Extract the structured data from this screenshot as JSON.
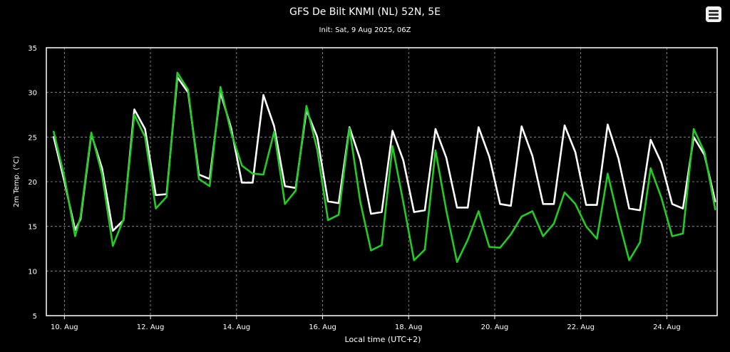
{
  "chart_data": {
    "type": "line",
    "title": "GFS De Bilt KNMI (NL) 52N, 5E",
    "subtitle": "Init: Sat, 9 Aug 2025, 06Z",
    "xlabel": "Local time (UTC+2)",
    "ylabel": "2m Temp. (°C)",
    "ylim": [
      5,
      35
    ],
    "yticks": [
      5,
      10,
      15,
      20,
      25,
      30,
      35
    ],
    "x_range_days": [
      9.58,
      25.17
    ],
    "xticks": [
      {
        "day": 10,
        "label": "10. Aug"
      },
      {
        "day": 12,
        "label": "12. Aug"
      },
      {
        "day": 14,
        "label": "14. Aug"
      },
      {
        "day": 16,
        "label": "16. Aug"
      },
      {
        "day": 18,
        "label": "18. Aug"
      },
      {
        "day": 20,
        "label": "20. Aug"
      },
      {
        "day": 22,
        "label": "22. Aug"
      },
      {
        "day": 24,
        "label": "24. Aug"
      }
    ],
    "grid": true,
    "legend": "none",
    "series": [
      {
        "color": "#ffffff",
        "x": [
          9.75,
          10.0,
          10.25,
          10.375,
          10.625,
          10.875,
          11.125,
          11.375,
          11.625,
          11.875,
          12.125,
          12.375,
          12.625,
          12.875,
          13.125,
          13.375,
          13.625,
          13.875,
          14.125,
          14.375,
          14.625,
          14.875,
          15.125,
          15.375,
          15.625,
          15.875,
          16.125,
          16.375,
          16.625,
          16.875,
          17.125,
          17.375,
          17.625,
          17.875,
          18.125,
          18.375,
          18.625,
          18.875,
          19.125,
          19.375,
          19.625,
          19.875,
          20.125,
          20.375,
          20.625,
          20.875,
          21.125,
          21.375,
          21.625,
          21.875,
          22.125,
          22.375,
          22.625,
          22.875,
          23.125,
          23.375,
          23.625,
          23.875,
          24.125,
          24.375,
          24.625,
          24.875,
          25.125
        ],
        "y": [
          25.0,
          20.0,
          14.6,
          15.8,
          25.3,
          21.5,
          14.5,
          15.7,
          28.1,
          25.9,
          18.5,
          18.6,
          31.7,
          30.0,
          20.8,
          20.3,
          30.0,
          26.0,
          19.9,
          19.9,
          29.7,
          26.2,
          19.5,
          19.3,
          28.0,
          25.0,
          17.8,
          17.6,
          26.1,
          22.5,
          16.4,
          16.6,
          25.7,
          22.4,
          16.6,
          16.8,
          25.9,
          22.7,
          17.1,
          17.1,
          26.1,
          22.8,
          17.5,
          17.3,
          26.2,
          22.9,
          17.5,
          17.5,
          26.3,
          23.3,
          17.4,
          17.4,
          26.4,
          22.6,
          17.0,
          16.8,
          24.7,
          22.1,
          17.5,
          17.0,
          25.0,
          23.0,
          17.8
        ]
      },
      {
        "color": "#22cc22",
        "x": [
          9.75,
          10.0,
          10.25,
          10.375,
          10.625,
          10.875,
          11.125,
          11.375,
          11.625,
          11.875,
          12.125,
          12.375,
          12.625,
          12.875,
          13.125,
          13.375,
          13.625,
          13.875,
          14.125,
          14.375,
          14.625,
          14.875,
          15.125,
          15.375,
          15.625,
          15.875,
          16.125,
          16.375,
          16.625,
          16.875,
          17.125,
          17.375,
          17.625,
          17.875,
          18.125,
          18.375,
          18.625,
          18.875,
          19.125,
          19.375,
          19.625,
          19.875,
          20.125,
          20.375,
          20.625,
          20.875,
          21.125,
          21.375,
          21.625,
          21.875,
          22.125,
          22.375,
          22.625,
          22.875,
          23.125,
          23.375,
          23.625,
          23.875,
          24.125,
          24.375,
          24.625,
          24.875,
          25.125
        ],
        "y": [
          25.6,
          20.5,
          13.9,
          16.1,
          25.5,
          20.8,
          12.8,
          15.8,
          27.5,
          25.0,
          17.0,
          18.3,
          32.2,
          30.3,
          20.3,
          19.5,
          30.6,
          25.5,
          21.8,
          20.9,
          20.8,
          25.6,
          17.5,
          19.0,
          28.5,
          23.6,
          15.7,
          16.3,
          26.0,
          17.8,
          12.3,
          12.9,
          24.0,
          17.7,
          11.2,
          12.4,
          23.5,
          16.8,
          11.0,
          13.5,
          16.7,
          12.7,
          12.6,
          14.1,
          16.1,
          16.7,
          13.9,
          15.3,
          18.8,
          17.5,
          15.0,
          13.6,
          20.9,
          15.8,
          11.2,
          13.2,
          21.5,
          18.2,
          13.9,
          14.2,
          25.9,
          23.3,
          16.9
        ]
      }
    ]
  },
  "icons": {
    "menu": "hamburger-menu-icon"
  }
}
